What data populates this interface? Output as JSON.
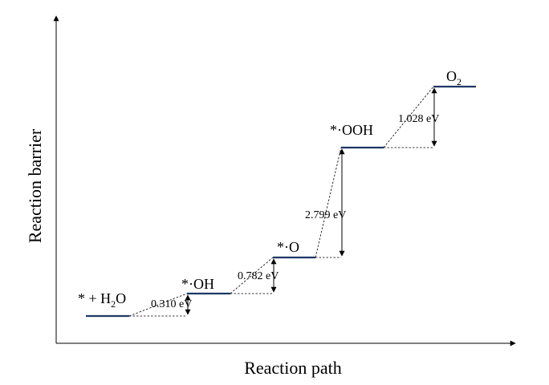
{
  "axes": {
    "x_title": "Reaction path",
    "y_title": "Reaction barrier"
  },
  "levels": [
    {
      "label": "* + H",
      "sub": "2",
      "suffix": "O"
    },
    {
      "label": "*·OH",
      "sub": "",
      "suffix": ""
    },
    {
      "label": "*·O",
      "sub": "",
      "suffix": ""
    },
    {
      "label": "*·OOH",
      "sub": "",
      "suffix": ""
    },
    {
      "label": "O",
      "sub": "2",
      "suffix": ""
    }
  ],
  "steps": [
    {
      "value": "0.310 eV"
    },
    {
      "value": "0.782 eV"
    },
    {
      "value": "2.799 eV"
    },
    {
      "value": "1.028 eV"
    }
  ],
  "colors": {
    "level": "#1f3864",
    "axis": "#000000"
  }
}
